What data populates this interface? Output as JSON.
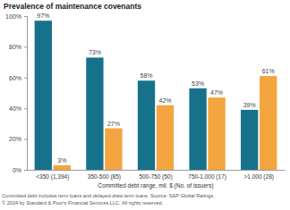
{
  "chart_data": {
    "type": "bar",
    "title": "Prevalence of maintenance covenants",
    "x_label": "Committed debt range, mil. $ (No. of issuers)",
    "footnotes": [
      "Committed debt includes term loans and delayed-draw term loans. Source: S&P Global Ratings.",
      "© 2024 by Standard & Poor's Financial Services LLC. All rights reserved."
    ],
    "categories": [
      "<350 (1,394)",
      "350-500 (85)",
      "500-750 (50)",
      "750-1,000 (17)",
      ">1,000 (28)"
    ],
    "series": [
      {
        "color": "#16728b",
        "values": [
          97,
          73,
          58,
          53,
          39
        ],
        "value_labels": [
          "97%",
          "73%",
          "58%",
          "53%",
          "39%"
        ]
      },
      {
        "color": "#f4a53f",
        "values": [
          3,
          27,
          42,
          47,
          61
        ],
        "value_labels": [
          "3%",
          "27%",
          "42%",
          "47%",
          "61%"
        ]
      }
    ],
    "ylim": [
      0,
      100
    ],
    "yticks": [
      {
        "value": 0,
        "label": "0%"
      },
      {
        "value": 20,
        "label": "20%"
      },
      {
        "value": 40,
        "label": "40%"
      },
      {
        "value": 60,
        "label": "60%"
      },
      {
        "value": 80,
        "label": "80%"
      },
      {
        "value": 100,
        "label": "100%"
      }
    ],
    "grid": false,
    "data_labels": true
  }
}
